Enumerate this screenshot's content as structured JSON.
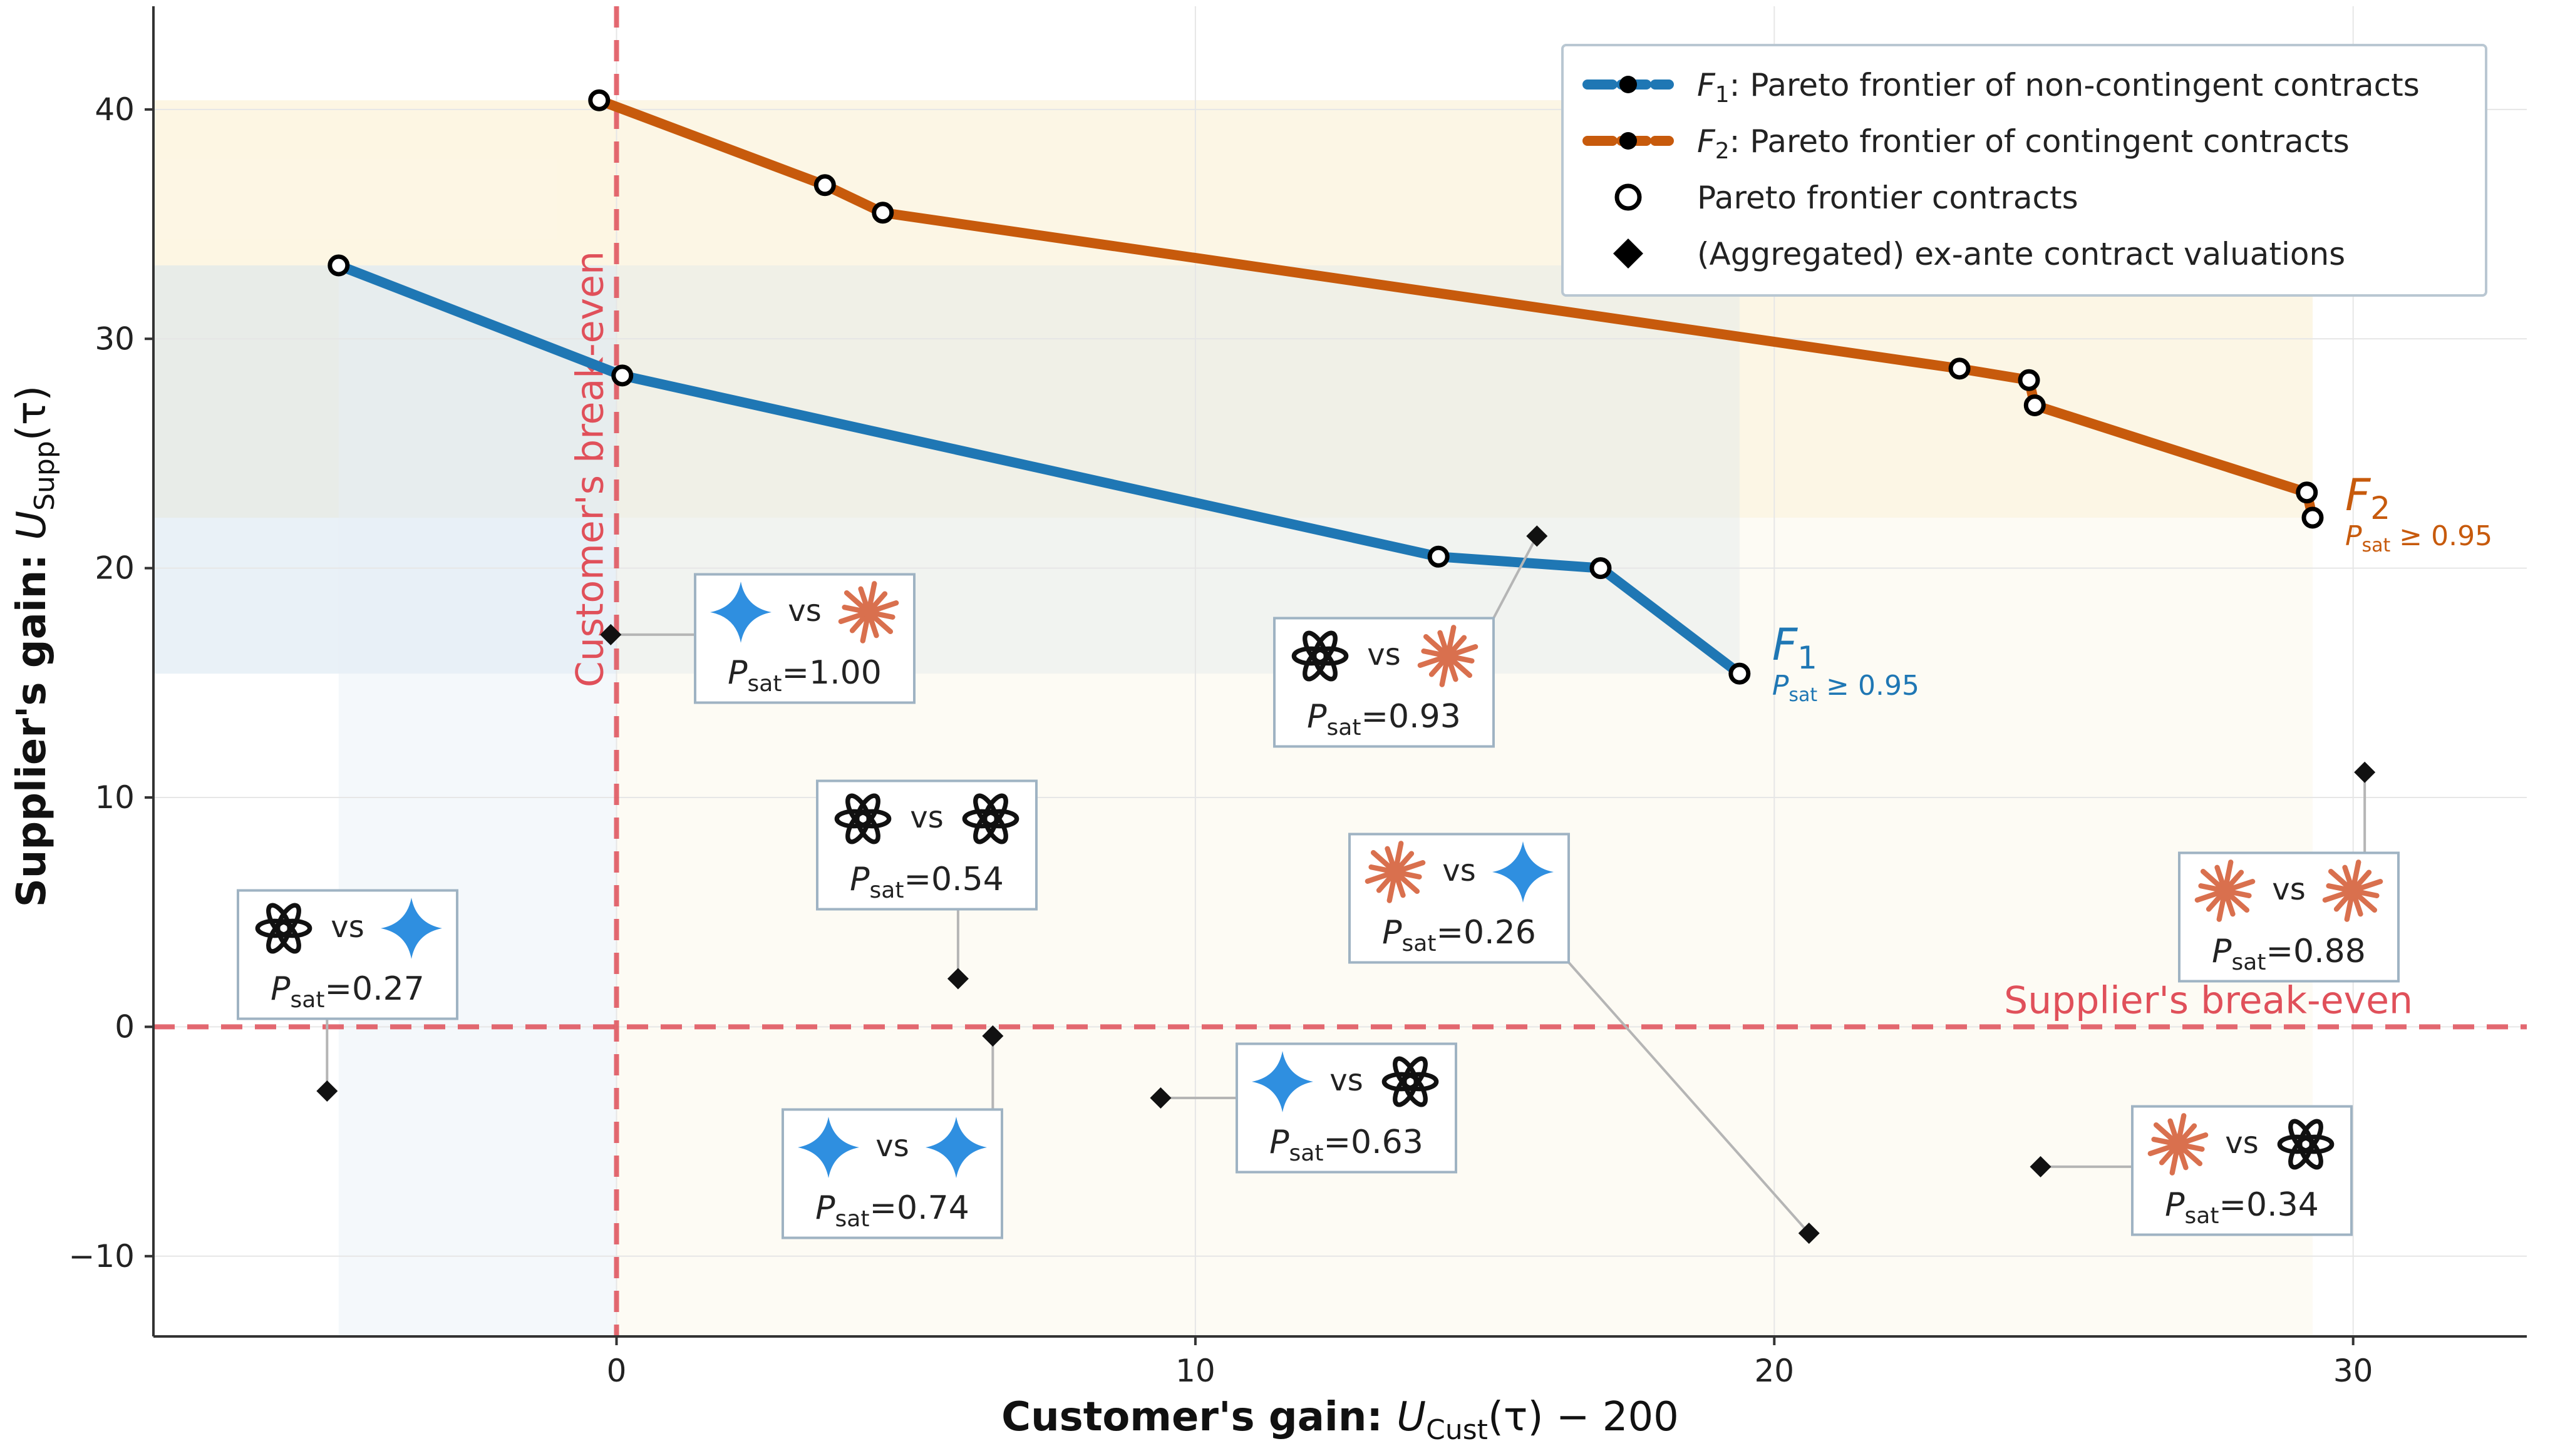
{
  "chart_data": {
    "type": "scatter",
    "xlabel": "Customer's gain: U_Cust(τ) − 200",
    "ylabel": "Supplier's gain: U_Supp(τ)",
    "xlim": [
      -8,
      33
    ],
    "ylim": [
      -13.5,
      44.5
    ],
    "xticks": [
      0,
      10,
      20,
      30
    ],
    "yticks": [
      -10,
      0,
      10,
      20,
      30,
      40
    ],
    "grid": true,
    "legend_position": "top-right",
    "reference_lines": [
      {
        "orientation": "vertical",
        "value": 0,
        "label": "Customer's break-even",
        "color": "#e0505a"
      },
      {
        "orientation": "horizontal",
        "value": 0,
        "label": "Supplier's break-even",
        "color": "#e0505a"
      }
    ],
    "legend": [
      {
        "symbol": "F1",
        "text": ": Pareto frontier of non-contingent contracts",
        "kind": "line",
        "color": "#1f77b4"
      },
      {
        "symbol": "F2",
        "text": ": Pareto frontier of contingent contracts",
        "kind": "line",
        "color": "#c75a0c"
      },
      {
        "text": "Pareto frontier contracts",
        "kind": "open-circle"
      },
      {
        "text": "(Aggregated) ex-ante contract valuations",
        "kind": "diamond"
      }
    ],
    "series": [
      {
        "name": "F1",
        "note": "P_sat ≥ 0.95",
        "color": "#1f77b4",
        "points": [
          {
            "x": -4.8,
            "y": 33.2
          },
          {
            "x": 0.1,
            "y": 28.4
          },
          {
            "x": 14.2,
            "y": 20.5
          },
          {
            "x": 17.0,
            "y": 20.0
          },
          {
            "x": 19.4,
            "y": 15.4
          }
        ]
      },
      {
        "name": "F2",
        "note": "P_sat ≥ 0.95",
        "color": "#c75a0c",
        "points": [
          {
            "x": -0.3,
            "y": 40.4
          },
          {
            "x": 3.6,
            "y": 36.7
          },
          {
            "x": 4.6,
            "y": 35.5
          },
          {
            "x": 23.2,
            "y": 28.7
          },
          {
            "x": 24.4,
            "y": 28.2
          },
          {
            "x": 24.5,
            "y": 27.1
          },
          {
            "x": 29.2,
            "y": 23.3
          },
          {
            "x": 29.3,
            "y": 22.2
          }
        ]
      }
    ],
    "valuations": [
      {
        "x": -0.1,
        "y": 17.1,
        "left": "gemini-icon",
        "right": "claude-icon",
        "p_sat": "1.00"
      },
      {
        "x": 15.9,
        "y": 21.4,
        "left": "openai-icon",
        "right": "claude-icon",
        "p_sat": "0.93"
      },
      {
        "x": 30.2,
        "y": 11.1,
        "left": "claude-icon",
        "right": "claude-icon",
        "p_sat": "0.88"
      },
      {
        "x": 5.9,
        "y": 2.1,
        "left": "openai-icon",
        "right": "openai-icon",
        "p_sat": "0.54"
      },
      {
        "x": -5.0,
        "y": -2.8,
        "left": "openai-icon",
        "right": "gemini-icon",
        "p_sat": "0.27"
      },
      {
        "x": 6.5,
        "y": -0.4,
        "left": "gemini-icon",
        "right": "gemini-icon",
        "p_sat": "0.74"
      },
      {
        "x": 9.4,
        "y": -3.1,
        "left": "gemini-icon",
        "right": "openai-icon",
        "p_sat": "0.63"
      },
      {
        "x": 20.6,
        "y": -9.0,
        "left": "claude-icon",
        "right": "gemini-icon",
        "p_sat": "0.26"
      },
      {
        "x": 24.6,
        "y": -6.1,
        "left": "claude-icon",
        "right": "openai-icon",
        "p_sat": "0.34"
      }
    ],
    "vs_label": "vs",
    "p_sat_prefix": "P",
    "p_sat_sub": "sat",
    "shaded_regions": [
      {
        "x0": -8,
        "x1": 29.3,
        "y0": 22.2,
        "y1": 40.4,
        "color": "#fbecc2"
      },
      {
        "x0": -8,
        "x1": 19.4,
        "y0": 15.4,
        "y1": 33.2,
        "color": "#cfe0ee"
      },
      {
        "x0": -4.8,
        "x1": 0,
        "y0": -13.5,
        "y1": 33.2,
        "color": "#e7eff7"
      },
      {
        "x0": 0,
        "x1": 29.3,
        "y0": -13.5,
        "y1": 40.4,
        "color": "#fbf6e6"
      }
    ]
  }
}
